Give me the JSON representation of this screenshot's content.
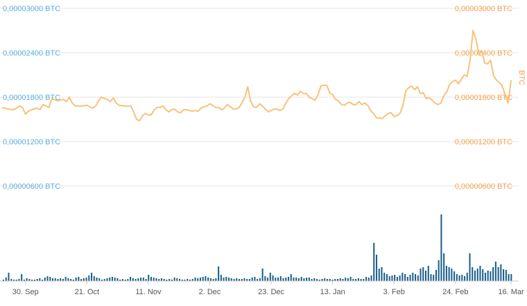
{
  "chart_data": {
    "type": "line",
    "title": "",
    "price_series": {
      "unit": "BTC",
      "color": "#f7c27a",
      "ylim": [
        0,
        3e-05
      ],
      "x_range": [
        0,
        174
      ],
      "points": [
        [
          0,
          1.66e-05
        ],
        [
          2,
          1.64e-05
        ],
        [
          4,
          1.63e-05
        ],
        [
          6,
          1.68e-05
        ],
        [
          7,
          1.66e-05
        ],
        [
          8,
          1.57e-05
        ],
        [
          9,
          1.61e-05
        ],
        [
          10,
          1.63e-05
        ],
        [
          12,
          1.65e-05
        ],
        [
          13,
          1.63e-05
        ],
        [
          14,
          1.7e-05
        ],
        [
          16,
          1.66e-05
        ],
        [
          17,
          1.78e-05
        ],
        [
          19,
          1.75e-05
        ],
        [
          21,
          1.77e-05
        ],
        [
          22,
          1.74e-05
        ],
        [
          23,
          1.8e-05
        ],
        [
          24,
          1.72e-05
        ],
        [
          25,
          1.68e-05
        ],
        [
          27,
          1.68e-05
        ],
        [
          29,
          1.69e-05
        ],
        [
          31,
          1.65e-05
        ],
        [
          32,
          1.68e-05
        ],
        [
          33,
          1.75e-05
        ],
        [
          34,
          1.8e-05
        ],
        [
          35,
          1.78e-05
        ],
        [
          36,
          1.77e-05
        ],
        [
          37,
          1.74e-05
        ],
        [
          38,
          1.79e-05
        ],
        [
          39,
          1.72e-05
        ],
        [
          40,
          1.69e-05
        ],
        [
          42,
          1.68e-05
        ],
        [
          44,
          1.68e-05
        ],
        [
          45,
          1.6e-05
        ],
        [
          46,
          1.5e-05
        ],
        [
          47,
          1.48e-05
        ],
        [
          48,
          1.55e-05
        ],
        [
          49,
          1.58e-05
        ],
        [
          50,
          1.56e-05
        ],
        [
          51,
          1.56e-05
        ],
        [
          52,
          1.63e-05
        ],
        [
          53,
          1.66e-05
        ],
        [
          54,
          1.66e-05
        ],
        [
          55,
          1.68e-05
        ],
        [
          56,
          1.63e-05
        ],
        [
          57,
          1.6e-05
        ],
        [
          58,
          1.63e-05
        ],
        [
          59,
          1.64e-05
        ],
        [
          60,
          1.6e-05
        ],
        [
          61,
          1.59e-05
        ],
        [
          62,
          1.63e-05
        ],
        [
          63,
          1.63e-05
        ],
        [
          64,
          1.62e-05
        ],
        [
          65,
          1.61e-05
        ],
        [
          66,
          1.62e-05
        ],
        [
          67,
          1.61e-05
        ],
        [
          68,
          1.65e-05
        ],
        [
          69,
          1.67e-05
        ],
        [
          70,
          1.68e-05
        ],
        [
          71,
          1.71e-05
        ],
        [
          72,
          1.69e-05
        ],
        [
          73,
          1.66e-05
        ],
        [
          74,
          1.66e-05
        ],
        [
          75,
          1.63e-05
        ],
        [
          76,
          1.65e-05
        ],
        [
          77,
          1.7e-05
        ],
        [
          78,
          1.67e-05
        ],
        [
          79,
          1.64e-05
        ],
        [
          80,
          1.64e-05
        ],
        [
          81,
          1.66e-05
        ],
        [
          82,
          1.72e-05
        ],
        [
          83,
          1.8e-05
        ],
        [
          84,
          1.94e-05
        ],
        [
          85,
          1.74e-05
        ],
        [
          86,
          1.67e-05
        ],
        [
          87,
          1.66e-05
        ],
        [
          88,
          1.71e-05
        ],
        [
          89,
          1.68e-05
        ],
        [
          90,
          1.64e-05
        ],
        [
          91,
          1.6e-05
        ],
        [
          92,
          1.62e-05
        ],
        [
          93,
          1.64e-05
        ],
        [
          94,
          1.64e-05
        ],
        [
          95,
          1.62e-05
        ],
        [
          96,
          1.64e-05
        ],
        [
          97,
          1.72e-05
        ],
        [
          98,
          1.78e-05
        ],
        [
          99,
          1.82e-05
        ],
        [
          100,
          1.85e-05
        ],
        [
          101,
          1.83e-05
        ],
        [
          102,
          1.88e-05
        ],
        [
          103,
          1.85e-05
        ],
        [
          104,
          1.85e-05
        ],
        [
          105,
          1.8e-05
        ],
        [
          106,
          1.78e-05
        ],
        [
          107,
          1.76e-05
        ],
        [
          108,
          1.83e-05
        ],
        [
          109,
          1.95e-05
        ],
        [
          110,
          1.96e-05
        ],
        [
          111,
          1.96e-05
        ],
        [
          112,
          1.86e-05
        ],
        [
          113,
          1.83e-05
        ],
        [
          114,
          1.77e-05
        ],
        [
          115,
          1.75e-05
        ],
        [
          116,
          1.7e-05
        ],
        [
          117,
          1.69e-05
        ],
        [
          118,
          1.72e-05
        ],
        [
          119,
          1.73e-05
        ],
        [
          120,
          1.7e-05
        ],
        [
          121,
          1.7e-05
        ],
        [
          122,
          1.74e-05
        ],
        [
          123,
          1.7e-05
        ],
        [
          124,
          1.72e-05
        ],
        [
          125,
          1.69e-05
        ],
        [
          126,
          1.62e-05
        ],
        [
          127,
          1.58e-05
        ],
        [
          128,
          1.52e-05
        ],
        [
          129,
          1.52e-05
        ],
        [
          130,
          1.51e-05
        ],
        [
          131,
          1.55e-05
        ],
        [
          132,
          1.58e-05
        ],
        [
          133,
          1.59e-05
        ],
        [
          134,
          1.54e-05
        ],
        [
          135,
          1.55e-05
        ],
        [
          136,
          1.58e-05
        ],
        [
          137,
          1.68e-05
        ],
        [
          138,
          1.88e-05
        ],
        [
          139,
          1.93e-05
        ],
        [
          140,
          1.95e-05
        ],
        [
          141,
          1.9e-05
        ],
        [
          142,
          1.94e-05
        ],
        [
          143,
          1.85e-05
        ],
        [
          144,
          1.86e-05
        ],
        [
          145,
          1.78e-05
        ],
        [
          146,
          1.79e-05
        ],
        [
          147,
          1.76e-05
        ],
        [
          148,
          1.72e-05
        ],
        [
          149,
          1.7e-05
        ],
        [
          150,
          1.72e-05
        ],
        [
          151,
          1.82e-05
        ],
        [
          152,
          1.87e-05
        ],
        [
          153,
          1.97e-05
        ],
        [
          154,
          2.01e-05
        ],
        [
          155,
          2.03e-05
        ],
        [
          156,
          1.98e-05
        ],
        [
          157,
          2.04e-05
        ],
        [
          158,
          2.1e-05
        ],
        [
          159,
          2.08e-05
        ],
        [
          160,
          2.3e-05
        ],
        [
          161,
          2.7e-05
        ],
        [
          162,
          2.58e-05
        ],
        [
          163,
          2.38e-05
        ],
        [
          164,
          2.43e-05
        ],
        [
          165,
          2.26e-05
        ],
        [
          166,
          2.25e-05
        ],
        [
          167,
          2.3e-05
        ],
        [
          168,
          2.09e-05
        ],
        [
          169,
          2.03e-05
        ],
        [
          170,
          2e-05
        ],
        [
          171,
          1.95e-05
        ],
        [
          172,
          1.83e-05
        ],
        [
          173,
          1.72e-05
        ],
        [
          174,
          2.03e-05
        ]
      ]
    },
    "volume_series": {
      "color": "#1a5f8a",
      "values": [
        0.02,
        0.05,
        0.12,
        0.03,
        0.02,
        0.02,
        0.03,
        0.1,
        0.02,
        0.04,
        0.03,
        0.02,
        0.02,
        0.03,
        0.04,
        0.02,
        0.05,
        0.07,
        0.06,
        0.04,
        0.04,
        0.03,
        0.04,
        0.03,
        0.06,
        0.04,
        0.03,
        0.02,
        0.05,
        0.06,
        0.03,
        0.04,
        0.05,
        0.08,
        0.12,
        0.07,
        0.05,
        0.04,
        0.02,
        0.03,
        0.04,
        0.05,
        0.06,
        0.05,
        0.04,
        0.02,
        0.03,
        0.02,
        0.03,
        0.06,
        0.04,
        0.03,
        0.04,
        0.05,
        0.05,
        0.03,
        0.09,
        0.06,
        0.05,
        0.04,
        0.03,
        0.04,
        0.03,
        0.02,
        0.03,
        0.02,
        0.05,
        0.04,
        0.03,
        0.02,
        0.02,
        0.03,
        0.02,
        0.03,
        0.05,
        0.04,
        0.05,
        0.06,
        0.07,
        0.05,
        0.04,
        0.03,
        0.04,
        0.21,
        0.09,
        0.05,
        0.06,
        0.05,
        0.04,
        0.03,
        0.04,
        0.03,
        0.03,
        0.04,
        0.03,
        0.03,
        0.05,
        0.06,
        0.03,
        0.04,
        0.18,
        0.07,
        0.05,
        0.12,
        0.08,
        0.05,
        0.05,
        0.07,
        0.04,
        0.05,
        0.06,
        0.1,
        0.05,
        0.05,
        0.04,
        0.06,
        0.04,
        0.05,
        0.05,
        0.03,
        0.04,
        0.03,
        0.02,
        0.03,
        0.04,
        0.03,
        0.03,
        0.02,
        0.03,
        0.03,
        0.04,
        0.03,
        0.05,
        0.04,
        0.06,
        0.03,
        0.03,
        0.04,
        0.03,
        0.03,
        0.06,
        0.05,
        0.08,
        0.55,
        0.38,
        0.18,
        0.2,
        0.12,
        0.1,
        0.07,
        0.08,
        0.09,
        0.06,
        0.08,
        0.12,
        0.1,
        0.06,
        0.09,
        0.12,
        0.1,
        0.08,
        0.18,
        0.2,
        0.15,
        0.22,
        0.1,
        0.09,
        0.16,
        0.3,
        0.96,
        0.4,
        0.22,
        0.2,
        0.18,
        0.14,
        0.1,
        0.08,
        0.09,
        0.07,
        0.12,
        0.4,
        0.2,
        0.15,
        0.18,
        0.22,
        0.17,
        0.12,
        0.15,
        0.14,
        0.2,
        0.28,
        0.2,
        0.24,
        0.17,
        0.16,
        0.1,
        0.1
      ]
    },
    "y_ticks_left": [
      "0,00003000 BTC",
      "0,00002400 BTC",
      "0,00001800 BTC",
      "0,00001200 BTC",
      "0,00000600 BTC"
    ],
    "y_ticks_right": [
      "0,00003000 BTC",
      "0,00002400 BTC",
      "0,00001800 BTC",
      "0,00001200 BTC",
      "0,00000600 BTC"
    ],
    "y_tick_values": [
      3e-05,
      2.4e-05,
      1.8e-05,
      1.2e-05,
      6e-06
    ],
    "x_ticks": [
      {
        "label": "30. Sep",
        "x": 8
      },
      {
        "label": "21. Oct",
        "x": 29
      },
      {
        "label": "11. Nov",
        "x": 50
      },
      {
        "label": "2. Dec",
        "x": 71
      },
      {
        "label": "23. Dec",
        "x": 92
      },
      {
        "label": "13. Jan",
        "x": 113
      },
      {
        "label": "3. Feb",
        "x": 134
      },
      {
        "label": "24. Feb",
        "x": 155
      },
      {
        "label": "16. Mar",
        "x": 174
      }
    ],
    "right_axis_title": "BTC",
    "grid": true
  }
}
